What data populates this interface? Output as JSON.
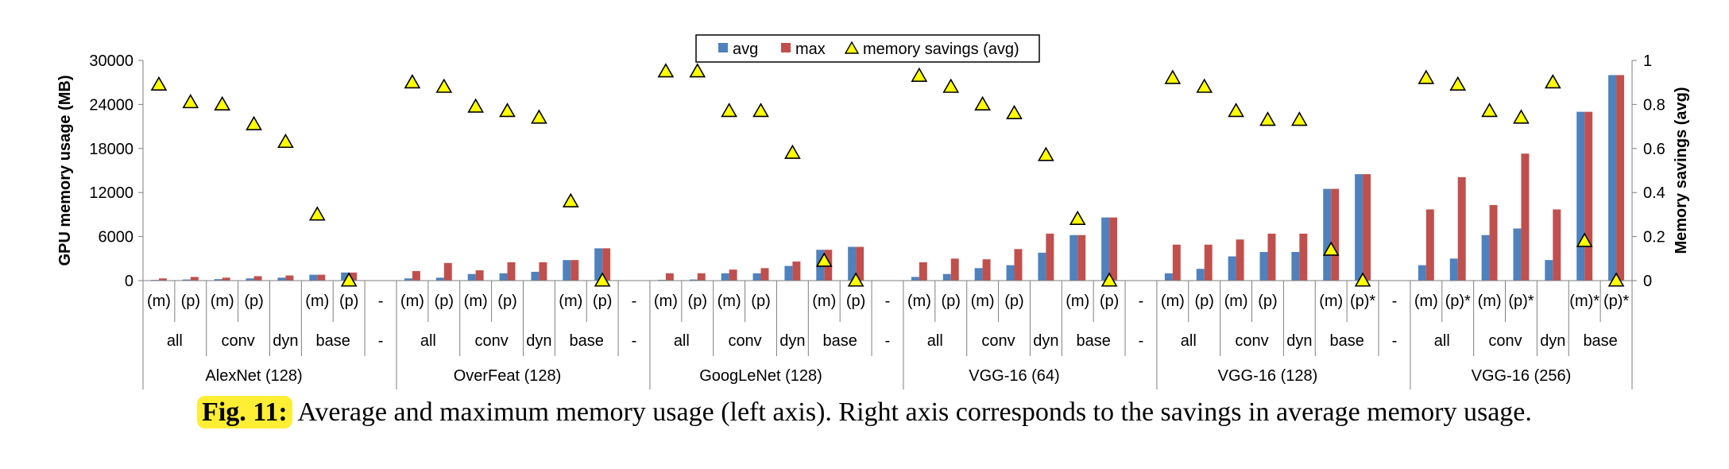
{
  "chart_data": {
    "type": "bar",
    "title": "",
    "ylabel": "GPU memory usage (MB)",
    "y2label": "Memory savings (avg)",
    "ylim": [
      0,
      30000
    ],
    "yticks": [
      "0",
      "6000",
      "12000",
      "18000",
      "24000",
      "30000"
    ],
    "y2lim": [
      0,
      1
    ],
    "y2ticks": [
      "0",
      "0.2",
      "0.4",
      "0.6",
      "0.8",
      "1"
    ],
    "legend": {
      "placement": "top-center",
      "entries": [
        "avg",
        "max",
        "memory savings (avg)"
      ]
    },
    "colors": {
      "avg": "#4f81bd",
      "max": "#c0504d",
      "savings": "#ffff00"
    },
    "categories": [
      "(m)",
      "(p)",
      "(m)",
      "(p)",
      "",
      "(m)",
      "(p)",
      "-",
      "(m)",
      "(p)",
      "(m)",
      "(p)",
      "",
      "(m)",
      "(p)",
      "-",
      "(m)",
      "(p)",
      "(m)",
      "(p)",
      "",
      "(m)",
      "(p)",
      "-",
      "(m)",
      "(p)",
      "(m)",
      "(p)",
      "",
      "(m)",
      "(p)",
      "-",
      "(m)",
      "(p)",
      "(m)",
      "(p)",
      "",
      "(m)",
      "(p)*",
      "-",
      "(m)",
      "(p)*",
      "(m)",
      "(p)*",
      "",
      "(m)*",
      "(p)*"
    ],
    "subgroups": [
      {
        "label": "all",
        "start": 0,
        "end": 2
      },
      {
        "label": "conv",
        "start": 2,
        "end": 4
      },
      {
        "label": "dyn",
        "start": 4,
        "end": 5
      },
      {
        "label": "base",
        "start": 5,
        "end": 7
      },
      {
        "label": "-",
        "start": 7,
        "end": 8
      },
      {
        "label": "all",
        "start": 8,
        "end": 10
      },
      {
        "label": "conv",
        "start": 10,
        "end": 12
      },
      {
        "label": "dyn",
        "start": 12,
        "end": 13
      },
      {
        "label": "base",
        "start": 13,
        "end": 15
      },
      {
        "label": "-",
        "start": 15,
        "end": 16
      },
      {
        "label": "all",
        "start": 16,
        "end": 18
      },
      {
        "label": "conv",
        "start": 18,
        "end": 20
      },
      {
        "label": "dyn",
        "start": 20,
        "end": 21
      },
      {
        "label": "base",
        "start": 21,
        "end": 23
      },
      {
        "label": "-",
        "start": 23,
        "end": 24
      },
      {
        "label": "all",
        "start": 24,
        "end": 26
      },
      {
        "label": "conv",
        "start": 26,
        "end": 28
      },
      {
        "label": "dyn",
        "start": 28,
        "end": 29
      },
      {
        "label": "base",
        "start": 29,
        "end": 31
      },
      {
        "label": "-",
        "start": 31,
        "end": 32
      },
      {
        "label": "all",
        "start": 32,
        "end": 34
      },
      {
        "label": "conv",
        "start": 34,
        "end": 36
      },
      {
        "label": "dyn",
        "start": 36,
        "end": 37
      },
      {
        "label": "base",
        "start": 37,
        "end": 39
      },
      {
        "label": "-",
        "start": 39,
        "end": 40
      },
      {
        "label": "all",
        "start": 40,
        "end": 42
      },
      {
        "label": "conv",
        "start": 42,
        "end": 44
      },
      {
        "label": "dyn",
        "start": 44,
        "end": 45
      },
      {
        "label": "base",
        "start": 45,
        "end": 47
      }
    ],
    "groups": [
      {
        "label": "AlexNet (128)",
        "start": 0,
        "end": 7
      },
      {
        "label": "OverFeat (128)",
        "start": 8,
        "end": 15
      },
      {
        "label": "GoogLeNet (128)",
        "start": 16,
        "end": 23
      },
      {
        "label": "VGG-16 (64)",
        "start": 24,
        "end": 31
      },
      {
        "label": "VGG-16 (128)",
        "start": 32,
        "end": 39
      },
      {
        "label": "VGG-16 (256)",
        "start": 40,
        "end": 47
      }
    ],
    "series": [
      {
        "name": "avg",
        "axis": "left",
        "values": [
          100,
          150,
          200,
          300,
          400,
          800,
          1100,
          null,
          300,
          400,
          900,
          1000,
          1200,
          2800,
          4400,
          null,
          100,
          150,
          1000,
          1000,
          2000,
          4200,
          4600,
          null,
          500,
          900,
          1700,
          2100,
          3800,
          6200,
          8600,
          null,
          1000,
          1600,
          3300,
          3900,
          3900,
          12500,
          14500,
          null,
          2100,
          3000,
          6200,
          7100,
          2800,
          23000,
          28000
        ]
      },
      {
        "name": "max",
        "axis": "left",
        "values": [
          300,
          500,
          400,
          600,
          700,
          800,
          1100,
          null,
          1300,
          2400,
          1400,
          2500,
          2500,
          2800,
          4400,
          null,
          1000,
          1000,
          1500,
          1700,
          2600,
          4200,
          4600,
          null,
          2500,
          3000,
          2900,
          4300,
          6400,
          6200,
          8600,
          null,
          4900,
          4900,
          5600,
          6400,
          6400,
          12500,
          14500,
          null,
          9700,
          14100,
          10300,
          17300,
          9700,
          23000,
          28000
        ]
      },
      {
        "name": "memory savings (avg)",
        "axis": "right",
        "type": "scatter",
        "values": [
          0.89,
          0.81,
          0.8,
          0.71,
          0.63,
          0.3,
          0.0,
          null,
          0.9,
          0.88,
          0.79,
          0.77,
          0.74,
          0.36,
          0.0,
          null,
          0.95,
          0.95,
          0.77,
          0.77,
          0.58,
          0.09,
          0.0,
          null,
          0.93,
          0.88,
          0.8,
          0.76,
          0.57,
          0.28,
          0.0,
          null,
          0.92,
          0.88,
          0.77,
          0.73,
          0.73,
          0.14,
          0.0,
          null,
          0.92,
          0.89,
          0.77,
          0.74,
          0.9,
          0.18,
          0.0
        ]
      }
    ]
  },
  "caption": {
    "label": "Fig. 11:",
    "text": " Average and maximum memory usage (left axis). Right axis corresponds to the savings in average memory usage."
  }
}
